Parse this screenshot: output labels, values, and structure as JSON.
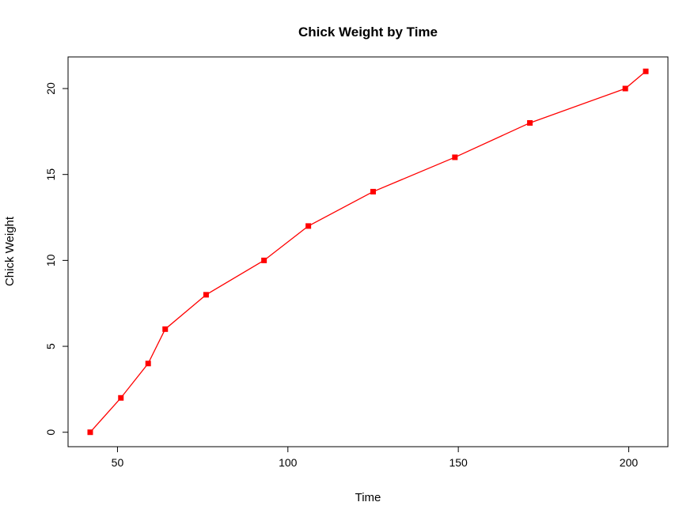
{
  "chart_data": {
    "type": "line",
    "title": "Chick Weight by Time",
    "xlabel": "Time",
    "ylabel": "Chick Weight",
    "x": [
      42,
      51,
      59,
      64,
      76,
      93,
      106,
      125,
      149,
      171,
      199,
      205
    ],
    "y": [
      0,
      2,
      4,
      6,
      8,
      10,
      12,
      14,
      16,
      18,
      20,
      21
    ],
    "x_ticks": [
      50,
      100,
      150,
      200
    ],
    "y_ticks": [
      0,
      5,
      10,
      15,
      20
    ],
    "xlim": [
      35.5,
      211.5
    ],
    "ylim": [
      -0.84,
      21.84
    ],
    "line_color": "#ff0000",
    "marker_color": "#ff0000",
    "marker": "filled-square",
    "grid": false,
    "legend": "none",
    "box": true
  }
}
